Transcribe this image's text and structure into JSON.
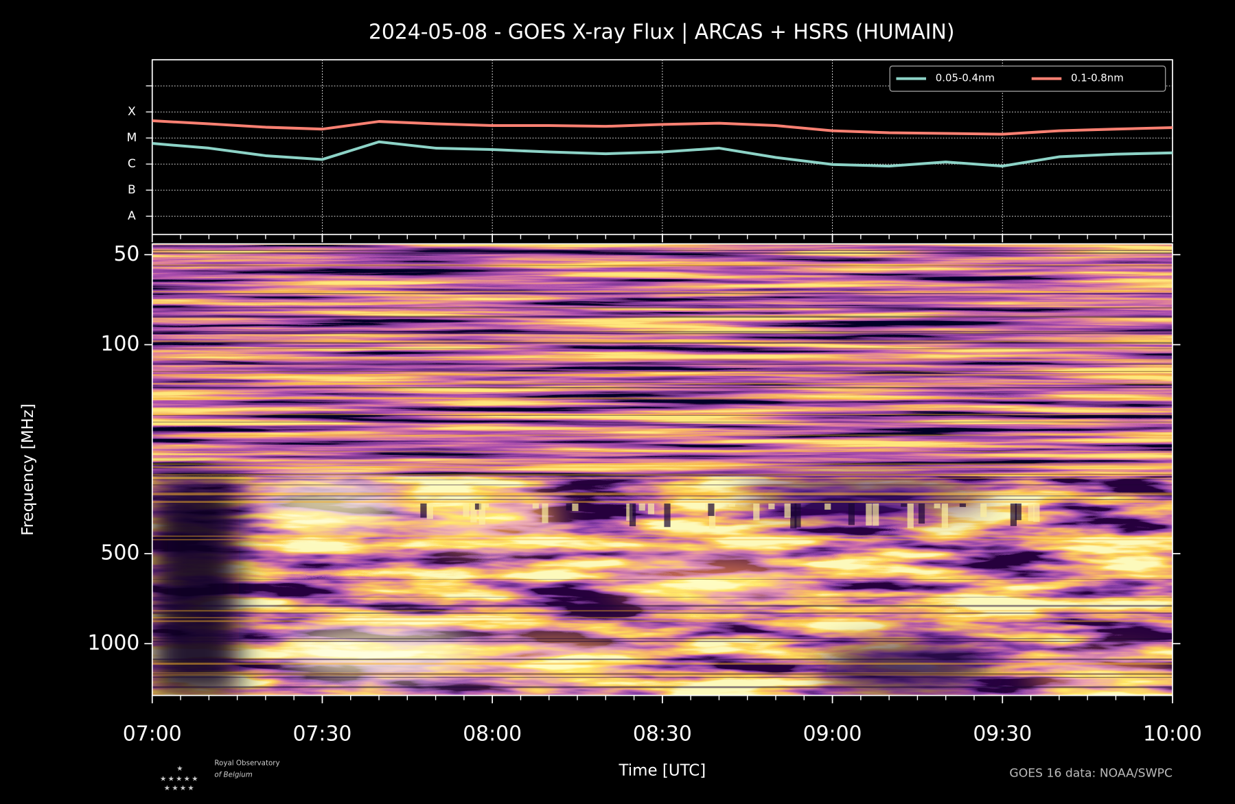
{
  "chart_data": [
    {
      "type": "line",
      "title": "2024-05-08 - GOES X-ray Flux | ARCAS + HSRS (HUMAIN)",
      "x": [
        "07:00",
        "07:10",
        "07:20",
        "07:30",
        "07:40",
        "07:50",
        "08:00",
        "08:10",
        "08:20",
        "08:30",
        "08:40",
        "08:50",
        "09:00",
        "09:10",
        "09:20",
        "09:30",
        "09:40",
        "09:50",
        "10:00"
      ],
      "series": [
        {
          "name": "0.05-0.4nm",
          "color": "#8dd3c7",
          "values": [
            6.2e-06,
            4.1e-06,
            2.1e-06,
            1.5e-06,
            7.1e-06,
            4.1e-06,
            3.6e-06,
            2.9e-06,
            2.5e-06,
            2.9e-06,
            4.1e-06,
            1.8e-06,
            9.6e-07,
            8.4e-07,
            1.2e-06,
            8.4e-07,
            1.9e-06,
            2.4e-06,
            2.7e-06
          ]
        },
        {
          "name": "0.1-0.8nm",
          "color": "#fa8072",
          "values": [
            4.6e-05,
            3.5e-05,
            2.6e-05,
            2.2e-05,
            4.3e-05,
            3.5e-05,
            3e-05,
            3e-05,
            2.8e-05,
            3.3e-05,
            3.7e-05,
            3e-05,
            1.9e-05,
            1.6e-05,
            1.5e-05,
            1.4e-05,
            1.9e-05,
            2.2e-05,
            2.5e-05
          ]
        }
      ],
      "xlim": [
        "07:00",
        "10:00"
      ],
      "ylim": [
        2e-09,
        0.01
      ],
      "log_y": true,
      "yticks": [
        {
          "value": 1e-08,
          "label": "A"
        },
        {
          "value": 1e-07,
          "label": "B"
        },
        {
          "value": 1e-06,
          "label": "C"
        },
        {
          "value": 1e-05,
          "label": "M"
        },
        {
          "value": 0.0001,
          "label": "X"
        },
        {
          "value": 0.001,
          "label": null
        }
      ],
      "grid": true,
      "legend": "upper right"
    },
    {
      "type": "spectrogram",
      "xlabel": "Time [UTC]",
      "ylabel": "Frequency [MHz]",
      "xlim": [
        "07:00",
        "10:00"
      ],
      "xticks": [
        "07:00",
        "07:30",
        "08:00",
        "08:30",
        "09:00",
        "09:30",
        "10:00"
      ],
      "ylim": [
        46,
        1490
      ],
      "log_y": true,
      "inverted_y": true,
      "yticks": [
        50,
        100,
        500,
        1000
      ]
    }
  ],
  "credit": "GOES 16 data: NOAA/SWPC",
  "logo": {
    "line1": "Royal Observatory",
    "line2": "of Belgium"
  }
}
